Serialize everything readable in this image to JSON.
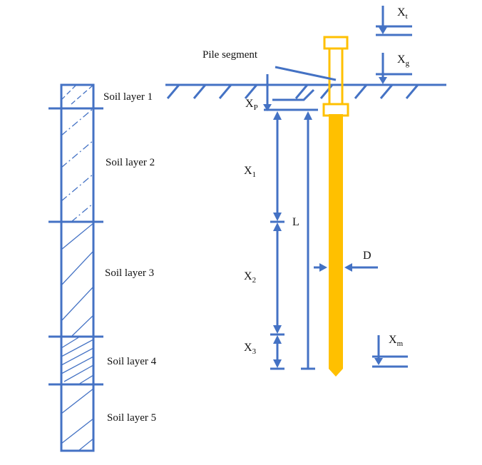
{
  "colors": {
    "line": "#4472C4",
    "pile": "#FFC000",
    "text": "#111111"
  },
  "soil_layers": [
    {
      "label": "Soil layer 1"
    },
    {
      "label": "Soil layer 2"
    },
    {
      "label": "Soil layer 3"
    },
    {
      "label": "Soil layer 4"
    },
    {
      "label": "Soil layer 5"
    }
  ],
  "callouts": {
    "pile_segment": "Pile segment"
  },
  "symbols": {
    "xt": {
      "base": "X",
      "sub": "t"
    },
    "xg": {
      "base": "X",
      "sub": "g"
    },
    "xp": {
      "base": "X",
      "sub": "P"
    },
    "x1": {
      "base": "X",
      "sub": "1"
    },
    "x2": {
      "base": "X",
      "sub": "2"
    },
    "x3": {
      "base": "X",
      "sub": "3"
    },
    "xm": {
      "base": "X",
      "sub": "m"
    },
    "L": "L",
    "D": "D"
  }
}
